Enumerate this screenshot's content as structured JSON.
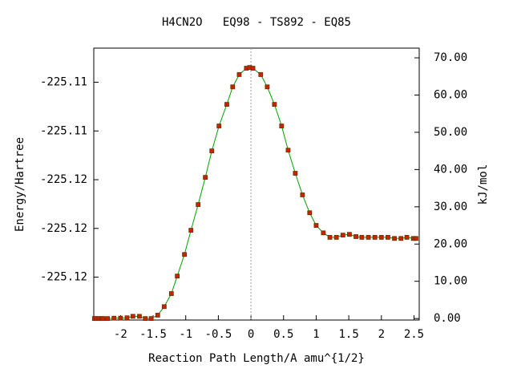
{
  "chart_data": {
    "type": "line",
    "title": "H4CN2O   EQ98 - TS892 - EQ85",
    "xlabel": "Reaction Path Length/A amu^{1/2}",
    "ylabel": "Energy/Hartree",
    "y2label": "kJ/mol",
    "xlim": [
      -2.41,
      2.58
    ],
    "xticks": [
      -2,
      -1.5,
      -1,
      -0.5,
      0,
      0.5,
      1,
      1.5,
      2,
      2.5
    ],
    "ylim": [
      -225.1294,
      -225.1015
    ],
    "yticks": [
      {
        "value": -225.125,
        "label": "-225.12"
      },
      {
        "value": -225.12,
        "label": "-225.12"
      },
      {
        "value": -225.115,
        "label": "-225.12"
      },
      {
        "value": -225.11,
        "label": "-225.11"
      },
      {
        "value": -225.105,
        "label": "-225.11"
      }
    ],
    "y2lim": [
      -0.4,
      72.6
    ],
    "y2ticks": [
      {
        "value": 0,
        "label": "0.00"
      },
      {
        "value": 10,
        "label": "10.00"
      },
      {
        "value": 20,
        "label": "20.00"
      },
      {
        "value": 30,
        "label": "30.00"
      },
      {
        "value": 40,
        "label": "40.00"
      },
      {
        "value": 50,
        "label": "50.00"
      },
      {
        "value": 60,
        "label": "60.00"
      },
      {
        "value": 70,
        "label": "70.00"
      }
    ],
    "vline_x": 0,
    "x": [
      -2.4,
      -2.37,
      -2.33,
      -2.29,
      -2.27,
      -2.2,
      -2.1,
      -2.0,
      -1.9,
      -1.81,
      -1.71,
      -1.62,
      -1.53,
      -1.43,
      -1.33,
      -1.22,
      -1.13,
      -1.02,
      -0.92,
      -0.81,
      -0.7,
      -0.6,
      -0.49,
      -0.37,
      -0.28,
      -0.18,
      -0.07,
      -0.02,
      0.03,
      0.15,
      0.25,
      0.36,
      0.47,
      0.57,
      0.68,
      0.79,
      0.9,
      1.0,
      1.11,
      1.21,
      1.31,
      1.41,
      1.51,
      1.61,
      1.7,
      1.8,
      1.9,
      2.0,
      2.1,
      2.2,
      2.3,
      2.39,
      2.49,
      2.53
    ],
    "series": [
      {
        "line_color": "#00a000",
        "color": "#cc2200",
        "axis": "y2",
        "values": [
          0,
          0,
          0,
          0,
          0,
          0,
          0.1,
          0.1,
          0.2,
          0.6,
          0.6,
          0,
          0,
          0.9,
          3.2,
          6.7,
          11.4,
          17.2,
          23.7,
          30.6,
          37.9,
          45.0,
          51.7,
          57.5,
          62.2,
          65.5,
          67.2,
          67.4,
          67.2,
          65.5,
          62.2,
          57.5,
          51.7,
          45.2,
          39.0,
          33.2,
          28.4,
          25.0,
          23.0,
          21.8,
          21.8,
          22.4,
          22.6,
          22.0,
          21.8,
          21.8,
          21.8,
          21.8,
          21.8,
          21.5,
          21.5,
          21.8,
          21.5,
          21.5
        ]
      }
    ]
  }
}
